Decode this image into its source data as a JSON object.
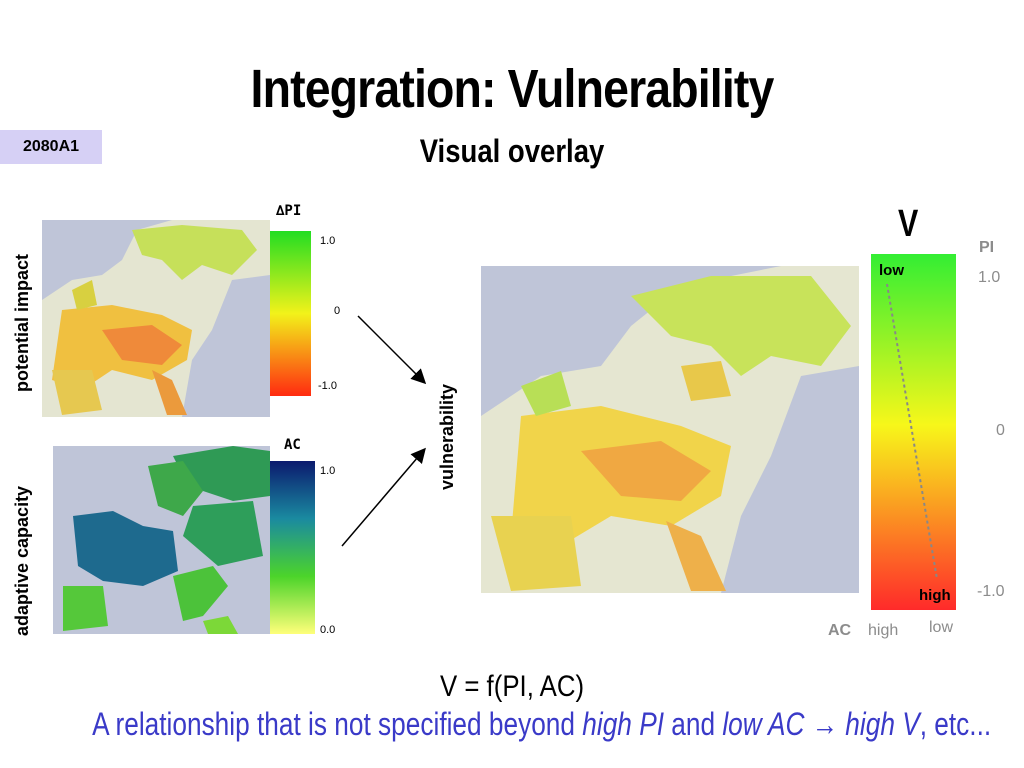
{
  "slide": {
    "title": "Integration: Vulnerability",
    "subtitle": "Visual overlay",
    "scenario_badge": "2080A1"
  },
  "potential_impact": {
    "axis_label": "potential impact",
    "legend_title": "∆PI",
    "ticks": [
      "1.0",
      "0",
      "-1.0"
    ],
    "gradient": [
      "#22dd22",
      "#f2f21a",
      "#ff2a10"
    ]
  },
  "adaptive_capacity": {
    "axis_label": "adaptive capacity",
    "legend_title": "AC",
    "ticks": [
      "1.0",
      "0.0"
    ],
    "gradient": [
      "#0b1a6e",
      "#1a8aa0",
      "#4cd42a",
      "#ffff7a"
    ]
  },
  "vulnerability": {
    "axis_label": "vulnerability",
    "legend_title": "V",
    "pi_label": "PI",
    "pi_ticks": [
      "1.0",
      "0",
      "-1.0"
    ],
    "low_label": "low",
    "high_label": "high",
    "ac_label": "AC",
    "ac_high": "high",
    "ac_low": "low",
    "gradient": [
      "#33ee33",
      "#f7f71a",
      "#ff2a2a"
    ]
  },
  "formula": "V = f(PI, AC)",
  "note": {
    "prefix": "A relationship that is not specified beyond ",
    "high_pi": "high PI",
    "and": " and ",
    "low_ac": "low AC",
    "arrow": " → ",
    "high_v": "high V",
    "suffix": ", etc..."
  }
}
